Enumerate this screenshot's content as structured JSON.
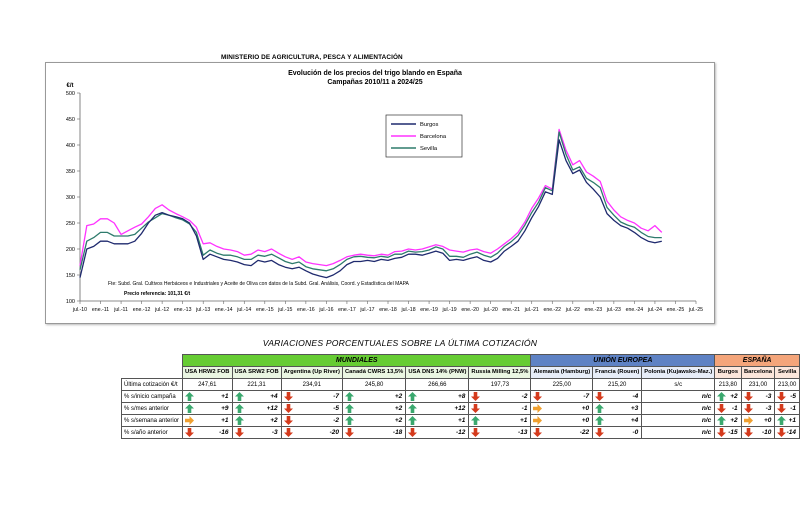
{
  "ministry": "MINISTERIO DE AGRICULTURA, PESCA Y ALIMENTACIÓN",
  "colors": {
    "burgos": "#1f2a6e",
    "barcelona": "#ff33ff",
    "sevilla": "#2e7b6c",
    "green_arrow": "#3aa86e",
    "red_arrow": "#d43a1c",
    "orange_arrow": "#f0a030"
  },
  "chart_data": {
    "type": "line",
    "title": "Evolución de los precios del trigo blando en España",
    "subtitle": "Campañas 2010/11 a 2024/25",
    "ylabel": "€/t",
    "ylim": [
      100,
      500
    ],
    "yticks": [
      100,
      150,
      200,
      250,
      300,
      350,
      400,
      450,
      500
    ],
    "xticks": [
      "jul.-10",
      "ene.-11",
      "jul.-11",
      "ene.-12",
      "jul.-12",
      "ene.-13",
      "jul.-13",
      "ene.-14",
      "jul.-14",
      "ene.-15",
      "jul.-15",
      "ene.-16",
      "jul.-16",
      "ene.-17",
      "jul.-17",
      "ene.-18",
      "jul.-18",
      "ene.-19",
      "jul.-19",
      "ene.-20",
      "jul.-20",
      "ene.-21",
      "jul.-21",
      "ene.-22",
      "jul.-22",
      "ene.-23",
      "jul.-23",
      "ene.-24",
      "jul.-24",
      "ene.-25",
      "jul.-25"
    ],
    "x": [
      "2010-07",
      "2010-09",
      "2010-11",
      "2011-01",
      "2011-03",
      "2011-05",
      "2011-07",
      "2011-09",
      "2011-11",
      "2012-01",
      "2012-03",
      "2012-05",
      "2012-07",
      "2012-09",
      "2012-11",
      "2013-01",
      "2013-03",
      "2013-05",
      "2013-07",
      "2013-09",
      "2013-11",
      "2014-01",
      "2014-03",
      "2014-05",
      "2014-07",
      "2014-09",
      "2014-11",
      "2015-01",
      "2015-03",
      "2015-05",
      "2015-07",
      "2015-09",
      "2015-11",
      "2016-01",
      "2016-03",
      "2016-05",
      "2016-07",
      "2016-09",
      "2016-11",
      "2017-01",
      "2017-03",
      "2017-05",
      "2017-07",
      "2017-09",
      "2017-11",
      "2018-01",
      "2018-03",
      "2018-05",
      "2018-07",
      "2018-09",
      "2018-11",
      "2019-01",
      "2019-03",
      "2019-05",
      "2019-07",
      "2019-09",
      "2019-11",
      "2020-01",
      "2020-03",
      "2020-05",
      "2020-07",
      "2020-09",
      "2020-11",
      "2021-01",
      "2021-03",
      "2021-05",
      "2021-07",
      "2021-09",
      "2021-11",
      "2022-01",
      "2022-03",
      "2022-05",
      "2022-07",
      "2022-09",
      "2022-11",
      "2023-01",
      "2023-03",
      "2023-05",
      "2023-07",
      "2023-09",
      "2023-11",
      "2024-01",
      "2024-03",
      "2024-05",
      "2024-07",
      "2024-09"
    ],
    "series": [
      {
        "name": "Burgos",
        "values": [
          145,
          200,
          205,
          215,
          215,
          210,
          210,
          210,
          215,
          230,
          250,
          265,
          270,
          265,
          262,
          258,
          250,
          225,
          180,
          190,
          185,
          180,
          178,
          175,
          170,
          168,
          178,
          175,
          178,
          170,
          165,
          162,
          165,
          158,
          152,
          148,
          145,
          150,
          158,
          170,
          176,
          176,
          178,
          176,
          180,
          178,
          182,
          184,
          190,
          190,
          188,
          192,
          196,
          192,
          178,
          180,
          178,
          182,
          185,
          178,
          175,
          182,
          196,
          205,
          215,
          235,
          260,
          282,
          310,
          305,
          410,
          370,
          345,
          352,
          328,
          315,
          300,
          268,
          255,
          245,
          240,
          232,
          222,
          215,
          212,
          215
        ]
      },
      {
        "name": "Barcelona",
        "values": [
          168,
          245,
          248,
          258,
          258,
          250,
          228,
          235,
          242,
          248,
          262,
          278,
          285,
          275,
          268,
          262,
          255,
          242,
          210,
          212,
          205,
          200,
          198,
          195,
          188,
          190,
          198,
          195,
          200,
          192,
          185,
          180,
          185,
          175,
          172,
          170,
          168,
          172,
          178,
          185,
          188,
          190,
          188,
          187,
          190,
          188,
          195,
          196,
          200,
          198,
          200,
          204,
          208,
          205,
          198,
          196,
          194,
          198,
          200,
          195,
          192,
          200,
          210,
          220,
          232,
          252,
          278,
          298,
          322,
          315,
          430,
          390,
          362,
          370,
          348,
          340,
          330,
          292,
          275,
          262,
          255,
          250,
          240,
          235,
          245,
          232
        ]
      },
      {
        "name": "Sevilla",
        "values": [
          160,
          215,
          222,
          232,
          232,
          225,
          225,
          225,
          228,
          240,
          252,
          260,
          268,
          265,
          260,
          256,
          248,
          232,
          188,
          198,
          192,
          188,
          188,
          185,
          180,
          180,
          188,
          186,
          190,
          183,
          176,
          172,
          175,
          166,
          162,
          160,
          158,
          162,
          170,
          180,
          185,
          186,
          184,
          183,
          186,
          184,
          190,
          190,
          196,
          194,
          195,
          198,
          204,
          200,
          186,
          186,
          184,
          190,
          194,
          188,
          184,
          192,
          205,
          214,
          226,
          246,
          270,
          290,
          318,
          312,
          425,
          382,
          352,
          358,
          336,
          328,
          318,
          280,
          265,
          252,
          246,
          242,
          232,
          224,
          222,
          222
        ]
      }
    ],
    "legend_position": "top-center",
    "grid": false,
    "source_note": "Fte: Subd. Gral. Cultivos Herbáceos e Industriales y Aceite de Oliva con datos de la Subd. Gral. Análisis, Coord. y Estadística del MAPA",
    "reference_price": "Precio referencia: 101,31 €/t"
  },
  "table": {
    "title": "VARIACIONES PORCENTUALES SOBRE LA ÚLTIMA COTIZACIÓN",
    "groups": {
      "mundiales": "MUNDIALES",
      "ue": "UNIÓN EUROPEA",
      "espana": "ESPAÑA"
    },
    "columns": [
      {
        "label": "USA HRW2 FOB",
        "group": "m"
      },
      {
        "label": "USA SRW2 FOB",
        "group": "m"
      },
      {
        "label": "Argentina (Up River)",
        "group": "m"
      },
      {
        "label": "Canadá CWRS 13,5%",
        "group": "m"
      },
      {
        "label": "USA DNS 14% (PNW)",
        "group": "m"
      },
      {
        "label": "Russia Milling 12,5%",
        "group": "m"
      },
      {
        "label": "Alemania (Hamburg)",
        "group": "u"
      },
      {
        "label": "Francia (Rouen)",
        "group": "u"
      },
      {
        "label": "Polonia (Kujawsko-Maz.)",
        "group": "u"
      },
      {
        "label": "Burgos",
        "group": "e"
      },
      {
        "label": "Barcelona",
        "group": "e"
      },
      {
        "label": "Sevilla",
        "group": "e"
      }
    ],
    "last_label": "Última cotización €/t",
    "last_values": [
      "247,61",
      "221,31",
      "234,91",
      "245,80",
      "266,66",
      "197,73",
      "225,00",
      "215,20",
      "s/c",
      "213,80",
      "231,00",
      "213,00"
    ],
    "rows": [
      {
        "label": "% s/inicio campaña",
        "values": [
          "+1",
          "+4",
          "-7",
          "+2",
          "+8",
          "-2",
          "-7",
          "-4",
          "n/c",
          "+2",
          "-3",
          "-5"
        ],
        "arrows": [
          "up",
          "up",
          "down",
          "up",
          "up",
          "down",
          "down",
          "down",
          "",
          "up",
          "down",
          "down"
        ]
      },
      {
        "label": "% s/mes anterior",
        "values": [
          "+9",
          "+12",
          "-5",
          "+2",
          "+12",
          "-1",
          "+0",
          "+3",
          "n/c",
          "-1",
          "-3",
          "-1"
        ],
        "arrows": [
          "up",
          "up",
          "down",
          "up",
          "up",
          "down",
          "right",
          "up",
          "",
          "down",
          "down",
          "down"
        ]
      },
      {
        "label": "% s/semana anterior",
        "values": [
          "+1",
          "+2",
          "-2",
          "+2",
          "+1",
          "+1",
          "+0",
          "+4",
          "n/c",
          "+2",
          "+0",
          "+1"
        ],
        "arrows": [
          "right",
          "up",
          "down",
          "up",
          "up",
          "up",
          "right",
          "up",
          "",
          "up",
          "right",
          "up"
        ]
      },
      {
        "label": "% s/año anterior",
        "values": [
          "-16",
          "-3",
          "-20",
          "-18",
          "-12",
          "-13",
          "-22",
          "-0",
          "n/c",
          "-15",
          "-10",
          "-14"
        ],
        "arrows": [
          "down",
          "down",
          "down",
          "down",
          "down",
          "down",
          "down",
          "down",
          "",
          "down",
          "down",
          "down"
        ]
      }
    ]
  }
}
